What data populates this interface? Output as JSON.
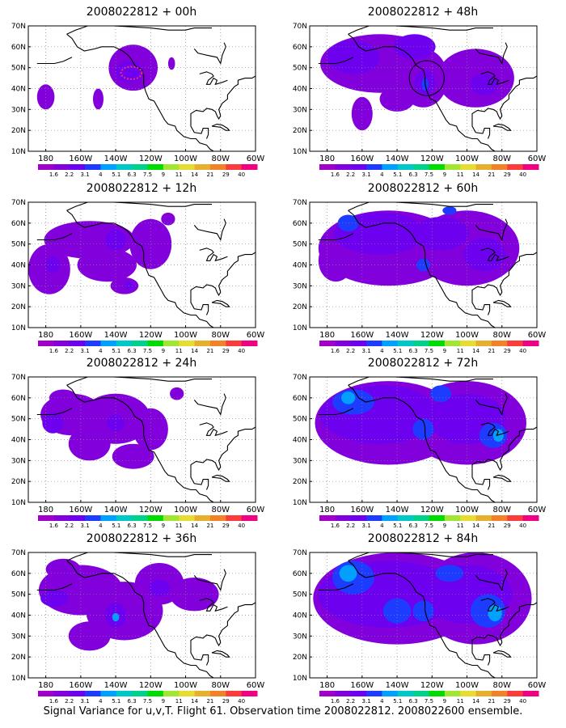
{
  "panels": [
    {
      "title": "2008022812 + 00h",
      "blobs": [
        {
          "lon": -130,
          "lat": 50,
          "rx": 14,
          "ry": 11,
          "level": 1
        },
        {
          "lon": -132,
          "lat": 48,
          "rx": 8,
          "ry": 5,
          "level": 2
        },
        {
          "lon": -180,
          "lat": 36,
          "rx": 5,
          "ry": 6,
          "level": 1
        },
        {
          "lon": -150,
          "lat": 35,
          "rx": 3,
          "ry": 5,
          "level": 1
        },
        {
          "lon": -108,
          "lat": 52,
          "rx": 2,
          "ry": 3,
          "level": 1
        }
      ],
      "dotted_ring": {
        "lon": -131,
        "lat": 47.5,
        "rx": 6,
        "ry": 3
      }
    },
    {
      "title": "2008022812 + 12h",
      "blobs": [
        {
          "lon": -155,
          "lat": 52,
          "rx": 26,
          "ry": 9,
          "level": 1
        },
        {
          "lon": -178,
          "lat": 38,
          "rx": 12,
          "ry": 12,
          "level": 1
        },
        {
          "lon": -145,
          "lat": 40,
          "rx": 17,
          "ry": 8,
          "level": 1
        },
        {
          "lon": -120,
          "lat": 50,
          "rx": 12,
          "ry": 12,
          "level": 1
        },
        {
          "lon": -140,
          "lat": 52,
          "rx": 6,
          "ry": 5,
          "level": 2
        },
        {
          "lon": -176,
          "lat": 40,
          "rx": 4,
          "ry": 4,
          "level": 2
        },
        {
          "lon": -135,
          "lat": 30,
          "rx": 8,
          "ry": 4,
          "level": 1
        },
        {
          "lon": -132,
          "lat": 30,
          "rx": 3,
          "ry": 2,
          "level": 2
        },
        {
          "lon": -110,
          "lat": 62,
          "rx": 4,
          "ry": 3,
          "level": 1
        }
      ]
    },
    {
      "title": "2008022812 + 24h",
      "blobs": [
        {
          "lon": -165,
          "lat": 52,
          "rx": 18,
          "ry": 10,
          "level": 1
        },
        {
          "lon": -140,
          "lat": 50,
          "rx": 20,
          "ry": 12,
          "level": 1
        },
        {
          "lon": -155,
          "lat": 38,
          "rx": 12,
          "ry": 8,
          "level": 1
        },
        {
          "lon": -120,
          "lat": 45,
          "rx": 10,
          "ry": 10,
          "level": 1
        },
        {
          "lon": -170,
          "lat": 60,
          "rx": 8,
          "ry": 4,
          "level": 1
        },
        {
          "lon": -176,
          "lat": 48,
          "rx": 6,
          "ry": 5,
          "level": 2
        },
        {
          "lon": -140,
          "lat": 48,
          "rx": 5,
          "ry": 4,
          "level": 2
        },
        {
          "lon": -130,
          "lat": 32,
          "rx": 12,
          "ry": 6,
          "level": 1
        },
        {
          "lon": -105,
          "lat": 62,
          "rx": 4,
          "ry": 3,
          "level": 1
        }
      ]
    },
    {
      "title": "2008022812 + 36h",
      "blobs": [
        {
          "lon": -160,
          "lat": 52,
          "rx": 24,
          "ry": 12,
          "level": 1
        },
        {
          "lon": -135,
          "lat": 42,
          "rx": 22,
          "ry": 14,
          "level": 1
        },
        {
          "lon": -115,
          "lat": 55,
          "rx": 14,
          "ry": 10,
          "level": 1
        },
        {
          "lon": -95,
          "lat": 50,
          "rx": 14,
          "ry": 8,
          "level": 1
        },
        {
          "lon": -170,
          "lat": 62,
          "rx": 10,
          "ry": 5,
          "level": 1
        },
        {
          "lon": -175,
          "lat": 48,
          "rx": 8,
          "ry": 4,
          "level": 2
        },
        {
          "lon": -140,
          "lat": 40,
          "rx": 6,
          "ry": 6,
          "level": 2
        },
        {
          "lon": -140,
          "lat": 39,
          "rx": 2,
          "ry": 2,
          "level": 4
        },
        {
          "lon": -115,
          "lat": 53,
          "rx": 6,
          "ry": 4,
          "level": 2
        },
        {
          "lon": -155,
          "lat": 30,
          "rx": 12,
          "ry": 7,
          "level": 1
        }
      ]
    },
    {
      "title": "2008022812 + 48h",
      "blobs": [
        {
          "lon": -150,
          "lat": 52,
          "rx": 34,
          "ry": 14,
          "level": 1
        },
        {
          "lon": -125,
          "lat": 45,
          "rx": 14,
          "ry": 14,
          "level": 1
        },
        {
          "lon": -95,
          "lat": 45,
          "rx": 22,
          "ry": 14,
          "level": 1
        },
        {
          "lon": -165,
          "lat": 55,
          "rx": 15,
          "ry": 8,
          "level": 2
        },
        {
          "lon": -130,
          "lat": 60,
          "rx": 12,
          "ry": 6,
          "level": 2
        },
        {
          "lon": -124,
          "lat": 43,
          "rx": 6,
          "ry": 6,
          "level": 2
        },
        {
          "lon": -124,
          "lat": 42,
          "rx": 2,
          "ry": 3,
          "level": 3
        },
        {
          "lon": -90,
          "lat": 42,
          "rx": 8,
          "ry": 5,
          "level": 2
        },
        {
          "lon": -160,
          "lat": 28,
          "rx": 6,
          "ry": 8,
          "level": 1
        },
        {
          "lon": -140,
          "lat": 35,
          "rx": 10,
          "ry": 6,
          "level": 1
        }
      ],
      "circle": {
        "lon": -123,
        "lat": 45,
        "r": 10
      }
    },
    {
      "title": "2008022812 + 60h",
      "blobs": [
        {
          "lon": -145,
          "lat": 48,
          "rx": 40,
          "ry": 18,
          "level": 1
        },
        {
          "lon": -100,
          "lat": 48,
          "rx": 30,
          "ry": 18,
          "level": 1
        },
        {
          "lon": -150,
          "lat": 55,
          "rx": 26,
          "ry": 10,
          "level": 2
        },
        {
          "lon": -115,
          "lat": 55,
          "rx": 16,
          "ry": 8,
          "level": 2
        },
        {
          "lon": -90,
          "lat": 45,
          "rx": 12,
          "ry": 8,
          "level": 2
        },
        {
          "lon": -168,
          "lat": 60,
          "rx": 6,
          "ry": 4,
          "level": 3
        },
        {
          "lon": -125,
          "lat": 40,
          "rx": 4,
          "ry": 3,
          "level": 3
        },
        {
          "lon": -110,
          "lat": 66,
          "rx": 4,
          "ry": 2,
          "level": 3
        },
        {
          "lon": -175,
          "lat": 42,
          "rx": 10,
          "ry": 10,
          "level": 1
        }
      ]
    },
    {
      "title": "2008022812 + 72h",
      "blobs": [
        {
          "lon": -145,
          "lat": 48,
          "rx": 42,
          "ry": 20,
          "level": 1
        },
        {
          "lon": -100,
          "lat": 48,
          "rx": 34,
          "ry": 20,
          "level": 1
        },
        {
          "lon": -150,
          "lat": 52,
          "rx": 34,
          "ry": 14,
          "level": 2
        },
        {
          "lon": -100,
          "lat": 50,
          "rx": 22,
          "ry": 12,
          "level": 2
        },
        {
          "lon": -165,
          "lat": 58,
          "rx": 12,
          "ry": 6,
          "level": 3
        },
        {
          "lon": -168,
          "lat": 60,
          "rx": 4,
          "ry": 3,
          "level": 4
        },
        {
          "lon": -125,
          "lat": 45,
          "rx": 6,
          "ry": 5,
          "level": 3
        },
        {
          "lon": -85,
          "lat": 42,
          "rx": 8,
          "ry": 6,
          "level": 3
        },
        {
          "lon": -82,
          "lat": 42,
          "rx": 3,
          "ry": 3,
          "level": 4
        },
        {
          "lon": -115,
          "lat": 62,
          "rx": 6,
          "ry": 4,
          "level": 3
        }
      ]
    },
    {
      "title": "2008022812 + 84h",
      "blobs": [
        {
          "lon": -140,
          "lat": 48,
          "rx": 48,
          "ry": 22,
          "level": 1
        },
        {
          "lon": -95,
          "lat": 48,
          "rx": 32,
          "ry": 22,
          "level": 1
        },
        {
          "lon": -145,
          "lat": 50,
          "rx": 40,
          "ry": 16,
          "level": 2
        },
        {
          "lon": -100,
          "lat": 50,
          "rx": 26,
          "ry": 14,
          "level": 2
        },
        {
          "lon": -165,
          "lat": 58,
          "rx": 12,
          "ry": 8,
          "level": 3
        },
        {
          "lon": -168,
          "lat": 60,
          "rx": 5,
          "ry": 4,
          "level": 4
        },
        {
          "lon": -140,
          "lat": 42,
          "rx": 8,
          "ry": 6,
          "level": 3
        },
        {
          "lon": -125,
          "lat": 42,
          "rx": 6,
          "ry": 5,
          "level": 3
        },
        {
          "lon": -88,
          "lat": 42,
          "rx": 10,
          "ry": 8,
          "level": 3
        },
        {
          "lon": -84,
          "lat": 41,
          "rx": 4,
          "ry": 4,
          "level": 4
        },
        {
          "lon": -110,
          "lat": 60,
          "rx": 8,
          "ry": 4,
          "level": 3
        }
      ]
    }
  ],
  "axes": {
    "lon_min": -190,
    "lon_max": -60,
    "lat_min": 10,
    "lat_max": 70,
    "lat_ticks": [
      {
        "v": 70,
        "label": "70N"
      },
      {
        "v": 60,
        "label": "60N"
      },
      {
        "v": 50,
        "label": "50N"
      },
      {
        "v": 40,
        "label": "40N"
      },
      {
        "v": 30,
        "label": "30N"
      },
      {
        "v": 20,
        "label": "20N"
      },
      {
        "v": 10,
        "label": "10N"
      }
    ],
    "lon_ticks": [
      {
        "v": -180,
        "label": "180"
      },
      {
        "v": -160,
        "label": "160W"
      },
      {
        "v": -140,
        "label": "140W"
      },
      {
        "v": -120,
        "label": "120W"
      },
      {
        "v": -100,
        "label": "100W"
      },
      {
        "v": -80,
        "label": "80W"
      },
      {
        "v": -60,
        "label": "60W"
      }
    ],
    "grid": "dotted"
  },
  "colorbar": {
    "labels": [
      "1.6",
      "2.2",
      "3.1",
      "4",
      "5.1",
      "6.3",
      "7.5",
      "9",
      "11",
      "14",
      "21",
      "29",
      "40"
    ],
    "colors": [
      "#a000c8",
      "#8200dc",
      "#6e00f0",
      "#1e3cff",
      "#00a0ff",
      "#00c8c8",
      "#00d28c",
      "#00dc00",
      "#a0e632",
      "#e6dc32",
      "#e6af2d",
      "#f08228",
      "#fa3c3c",
      "#f00082"
    ]
  },
  "footer": "Signal Variance for u,v,T. Flight 61. Observation time 2008022812. 2008022600 ensemble."
}
